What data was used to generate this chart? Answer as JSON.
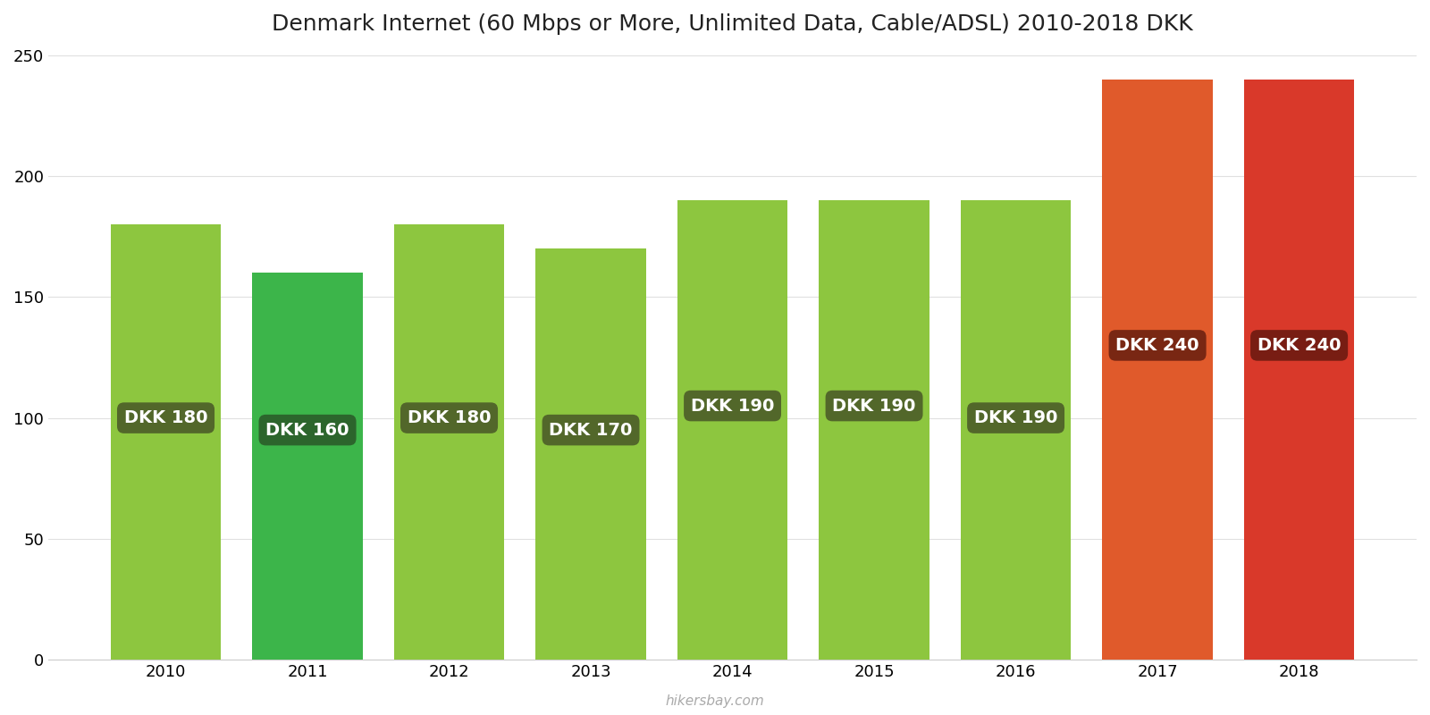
{
  "title": "Denmark Internet (60 Mbps or More, Unlimited Data, Cable/ADSL) 2010-2018 DKK",
  "years": [
    2010,
    2011,
    2012,
    2013,
    2014,
    2015,
    2016,
    2017,
    2018
  ],
  "values": [
    180,
    160,
    180,
    170,
    190,
    190,
    190,
    240,
    240
  ],
  "bar_colors": [
    "#8dc63f",
    "#3cb54a",
    "#8dc63f",
    "#8dc63f",
    "#8dc63f",
    "#8dc63f",
    "#8dc63f",
    "#e05a2b",
    "#d9392a"
  ],
  "label_bg_colors": [
    "#4a5a28",
    "#2a5a28",
    "#4a5a28",
    "#4a5a28",
    "#4a5a28",
    "#4a5a28",
    "#4a5a28",
    "#6b2010",
    "#6b1a10"
  ],
  "ylim": [
    0,
    250
  ],
  "yticks": [
    0,
    50,
    100,
    150,
    200,
    250
  ],
  "watermark": "hikersbay.com",
  "label_fontsize": 14,
  "title_fontsize": 18,
  "tick_fontsize": 13,
  "bar_width": 0.78,
  "label_y_positions": [
    100,
    95,
    100,
    95,
    105,
    105,
    100,
    130,
    130
  ],
  "background_color": "#ffffff",
  "grid_color": "#e0e0e0"
}
